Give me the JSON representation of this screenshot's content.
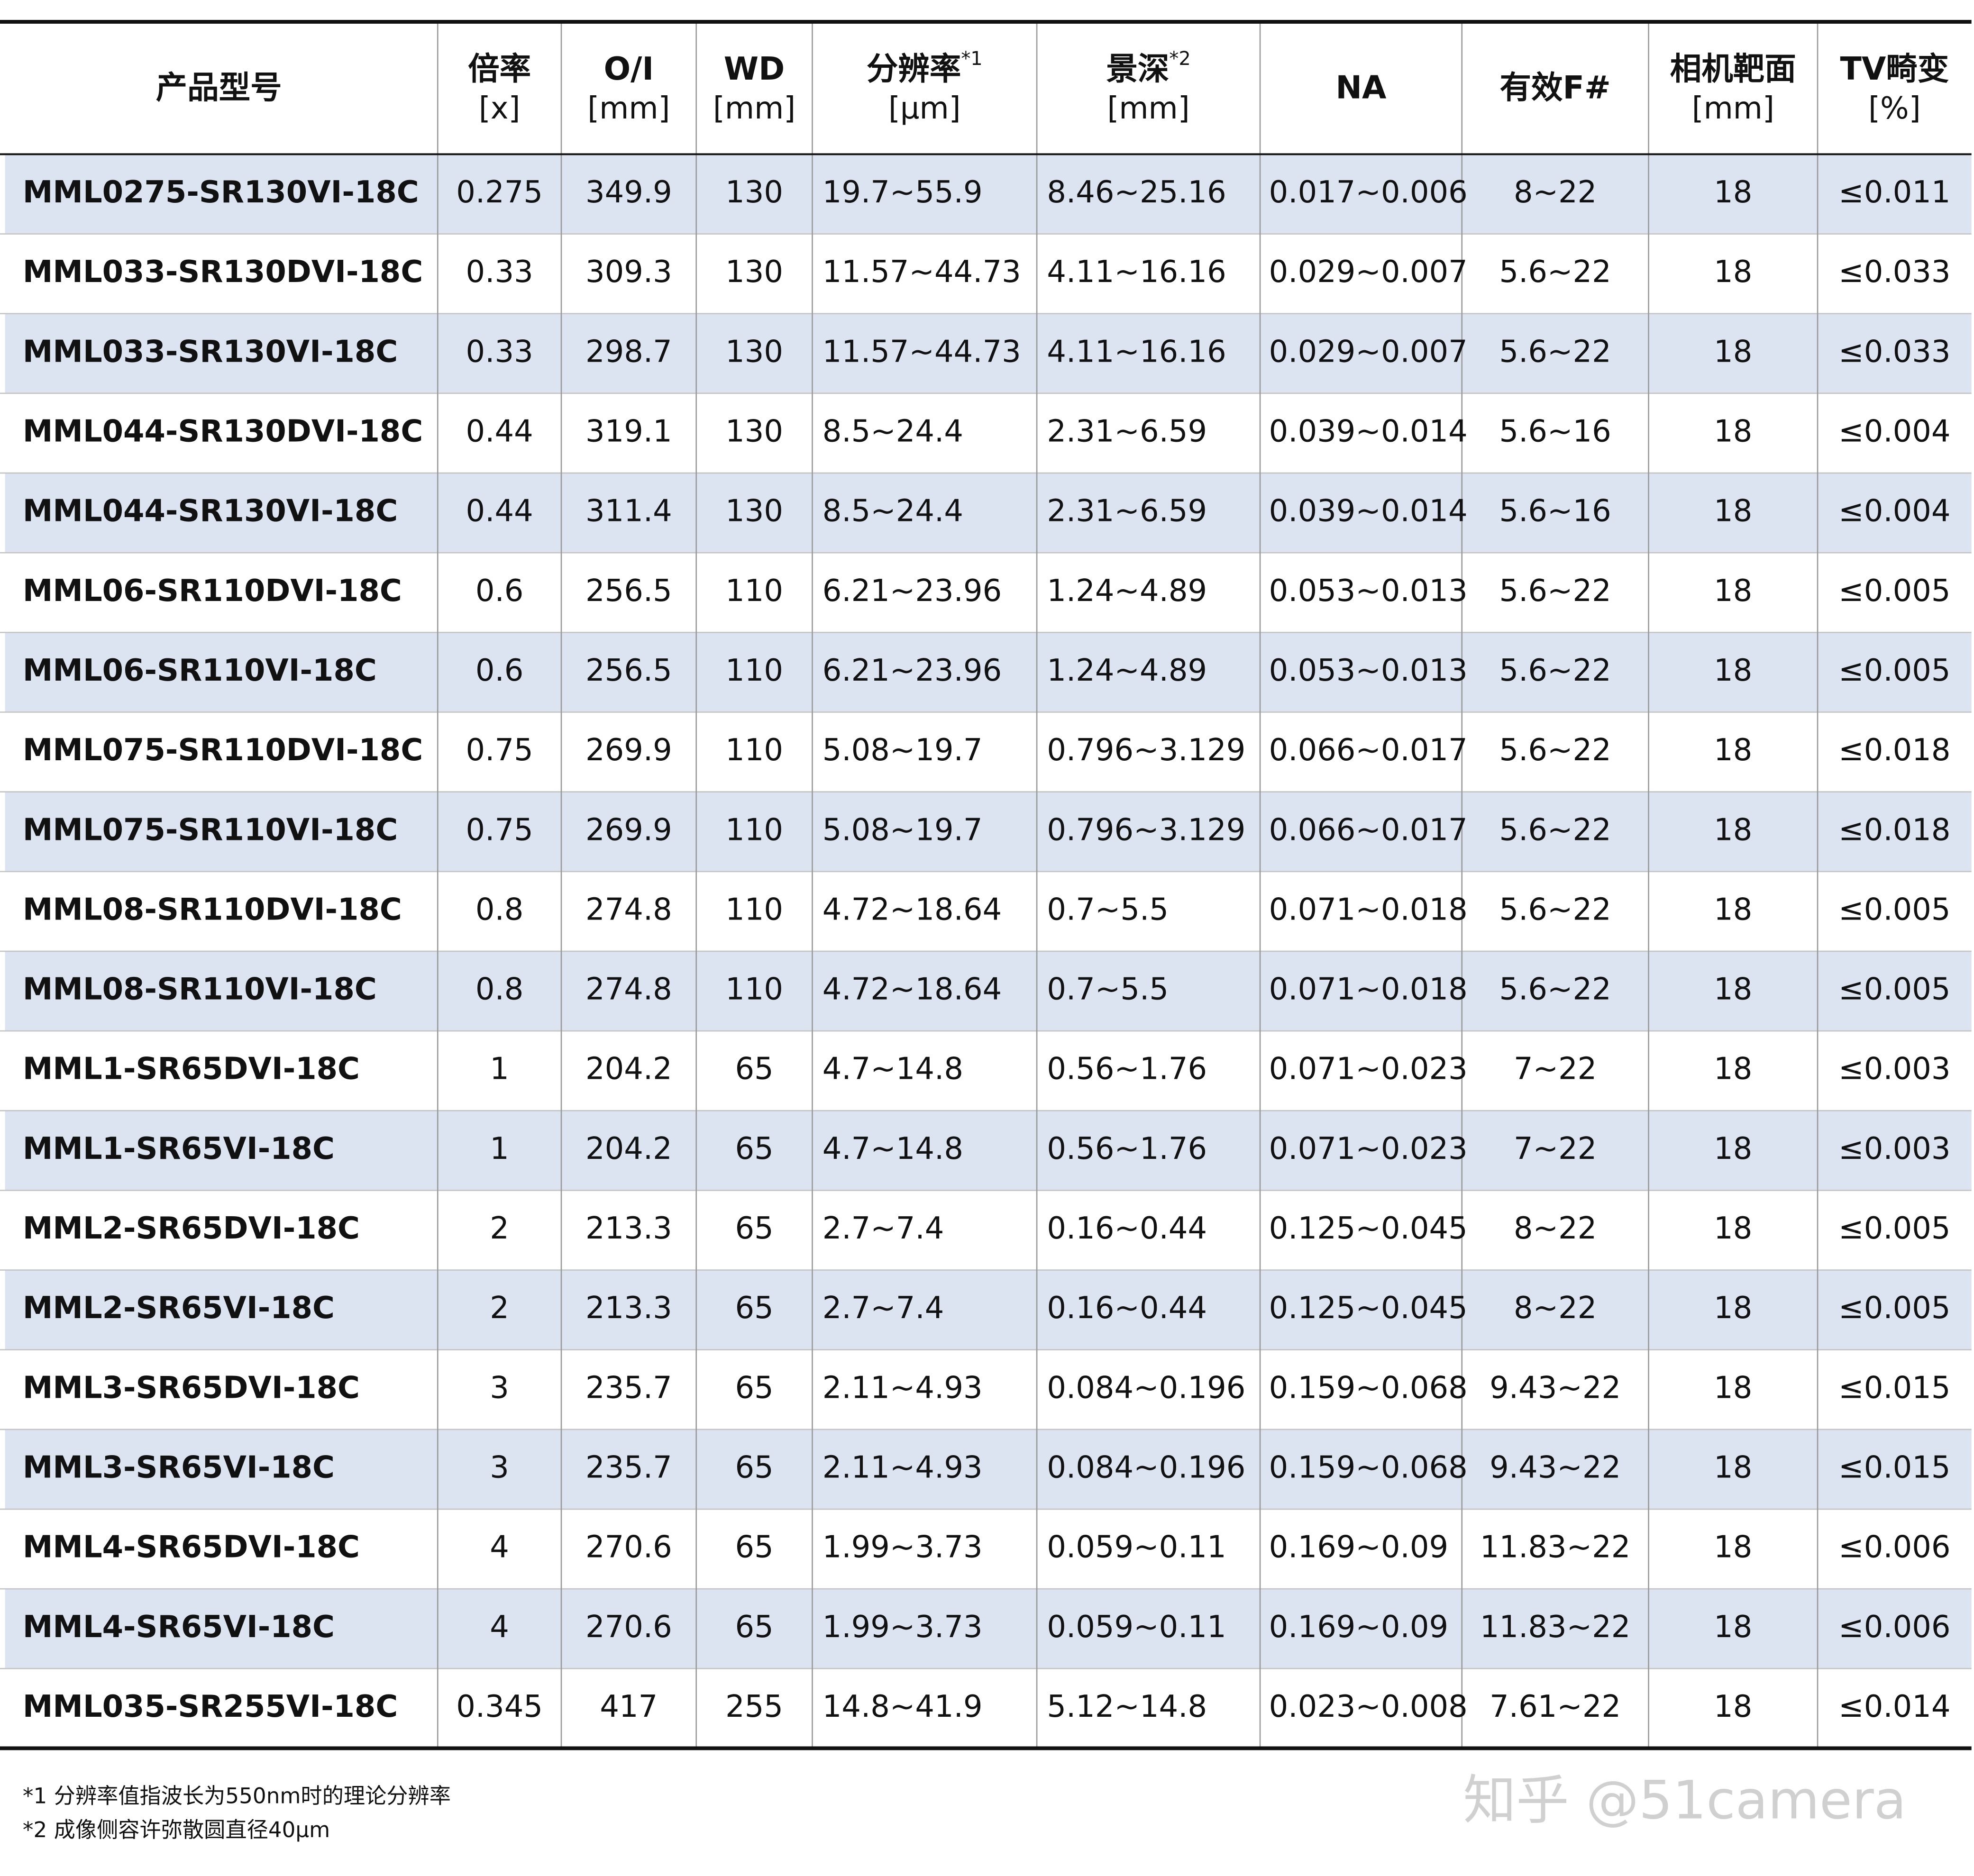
{
  "table": {
    "header": [
      {
        "label": "产品型号"
      },
      {
        "label": "倍率",
        "unit": "[x]"
      },
      {
        "label": "O/I",
        "unit": "[mm]"
      },
      {
        "label": "WD",
        "unit": "[mm]"
      },
      {
        "label": "分辨率",
        "sup": "*1",
        "unit": "[μm]"
      },
      {
        "label": "景深",
        "sup": "*2",
        "unit": "[mm]"
      },
      {
        "label": "NA"
      },
      {
        "label": "有效F#"
      },
      {
        "label": "相机靶面",
        "unit": "[mm]"
      },
      {
        "label": "TV畸变",
        "unit": "[%]"
      }
    ],
    "rows": [
      [
        "MML0275-SR130VI-18C",
        "0.275",
        "349.9",
        "130",
        "19.7~55.9",
        "8.46~25.16",
        "0.017~0.006",
        "8~22",
        "18",
        "≤0.011"
      ],
      [
        "MML033-SR130DVI-18C",
        "0.33",
        "309.3",
        "130",
        "11.57~44.73",
        "4.11~16.16",
        "0.029~0.007",
        "5.6~22",
        "18",
        "≤0.033"
      ],
      [
        "MML033-SR130VI-18C",
        "0.33",
        "298.7",
        "130",
        "11.57~44.73",
        "4.11~16.16",
        "0.029~0.007",
        "5.6~22",
        "18",
        "≤0.033"
      ],
      [
        "MML044-SR130DVI-18C",
        "0.44",
        "319.1",
        "130",
        "8.5~24.4",
        "2.31~6.59",
        "0.039~0.014",
        "5.6~16",
        "18",
        "≤0.004"
      ],
      [
        "MML044-SR130VI-18C",
        "0.44",
        "311.4",
        "130",
        "8.5~24.4",
        "2.31~6.59",
        "0.039~0.014",
        "5.6~16",
        "18",
        "≤0.004"
      ],
      [
        "MML06-SR110DVI-18C",
        "0.6",
        "256.5",
        "110",
        "6.21~23.96",
        "1.24~4.89",
        "0.053~0.013",
        "5.6~22",
        "18",
        "≤0.005"
      ],
      [
        "MML06-SR110VI-18C",
        "0.6",
        "256.5",
        "110",
        "6.21~23.96",
        "1.24~4.89",
        "0.053~0.013",
        "5.6~22",
        "18",
        "≤0.005"
      ],
      [
        "MML075-SR110DVI-18C",
        "0.75",
        "269.9",
        "110",
        "5.08~19.7",
        "0.796~3.129",
        "0.066~0.017",
        "5.6~22",
        "18",
        "≤0.018"
      ],
      [
        "MML075-SR110VI-18C",
        "0.75",
        "269.9",
        "110",
        "5.08~19.7",
        "0.796~3.129",
        "0.066~0.017",
        "5.6~22",
        "18",
        "≤0.018"
      ],
      [
        "MML08-SR110DVI-18C",
        "0.8",
        "274.8",
        "110",
        "4.72~18.64",
        "0.7~5.5",
        "0.071~0.018",
        "5.6~22",
        "18",
        "≤0.005"
      ],
      [
        "MML08-SR110VI-18C",
        "0.8",
        "274.8",
        "110",
        "4.72~18.64",
        "0.7~5.5",
        "0.071~0.018",
        "5.6~22",
        "18",
        "≤0.005"
      ],
      [
        "MML1-SR65DVI-18C",
        "1",
        "204.2",
        "65",
        "4.7~14.8",
        "0.56~1.76",
        "0.071~0.023",
        "7~22",
        "18",
        "≤0.003"
      ],
      [
        "MML1-SR65VI-18C",
        "1",
        "204.2",
        "65",
        "4.7~14.8",
        "0.56~1.76",
        "0.071~0.023",
        "7~22",
        "18",
        "≤0.003"
      ],
      [
        "MML2-SR65DVI-18C",
        "2",
        "213.3",
        "65",
        "2.7~7.4",
        "0.16~0.44",
        "0.125~0.045",
        "8~22",
        "18",
        "≤0.005"
      ],
      [
        "MML2-SR65VI-18C",
        "2",
        "213.3",
        "65",
        "2.7~7.4",
        "0.16~0.44",
        "0.125~0.045",
        "8~22",
        "18",
        "≤0.005"
      ],
      [
        "MML3-SR65DVI-18C",
        "3",
        "235.7",
        "65",
        "2.11~4.93",
        "0.084~0.196",
        "0.159~0.068",
        "9.43~22",
        "18",
        "≤0.015"
      ],
      [
        "MML3-SR65VI-18C",
        "3",
        "235.7",
        "65",
        "2.11~4.93",
        "0.084~0.196",
        "0.159~0.068",
        "9.43~22",
        "18",
        "≤0.015"
      ],
      [
        "MML4-SR65DVI-18C",
        "4",
        "270.6",
        "65",
        "1.99~3.73",
        "0.059~0.11",
        "0.169~0.09",
        "11.83~22",
        "18",
        "≤0.006"
      ],
      [
        "MML4-SR65VI-18C",
        "4",
        "270.6",
        "65",
        "1.99~3.73",
        "0.059~0.11",
        "0.169~0.09",
        "11.83~22",
        "18",
        "≤0.006"
      ],
      [
        "MML035-SR255VI-18C",
        "0.345",
        "417",
        "255",
        "14.8~41.9",
        "5.12~14.8",
        "0.023~0.008",
        "7.61~22",
        "18",
        "≤0.014"
      ]
    ]
  },
  "footnotes": [
    "*1 分辨率值指波长为550nm时的理论分辨率",
    "*2 成像侧容许弥散圆直径40μm"
  ],
  "watermark": "知乎 @51camera"
}
